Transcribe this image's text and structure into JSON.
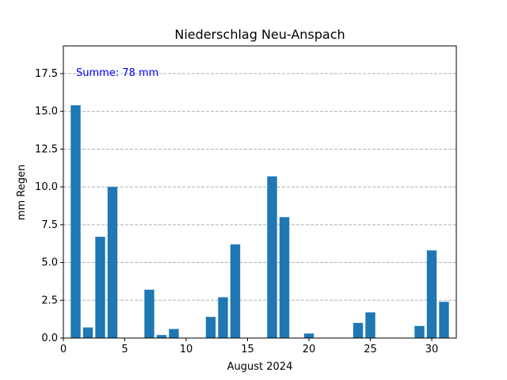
{
  "chart_data": {
    "type": "bar",
    "title": "Niederschlag Neu-Anspach",
    "xlabel": "August 2024",
    "ylabel": "mm Regen",
    "annotation": "Summe: 78 mm",
    "xlim": [
      0,
      32
    ],
    "ylim": [
      0,
      19.33
    ],
    "xticks": [
      0,
      5,
      10,
      15,
      20,
      25,
      30
    ],
    "xtick_labels": [
      "0",
      "5",
      "10",
      "15",
      "20",
      "25",
      "30"
    ],
    "yticks": [
      0,
      2.5,
      5,
      7.5,
      10,
      12.5,
      15,
      17.5
    ],
    "ytick_labels": [
      "0.0",
      "2.5",
      "5.0",
      "7.5",
      "10.0",
      "12.5",
      "15.0",
      "17.5"
    ],
    "grid": "y-dashed",
    "x": [
      1,
      2,
      3,
      4,
      7,
      8,
      9,
      12,
      13,
      14,
      17,
      18,
      20,
      24,
      25,
      29,
      30,
      31
    ],
    "values": [
      15.4,
      0.7,
      6.7,
      10.0,
      3.2,
      0.2,
      0.6,
      1.4,
      2.7,
      6.2,
      10.7,
      8.0,
      0.3,
      1.0,
      1.7,
      0.8,
      5.8,
      2.4
    ],
    "bar_color": "#1f77b4",
    "annotation_color": "#0000ff"
  }
}
